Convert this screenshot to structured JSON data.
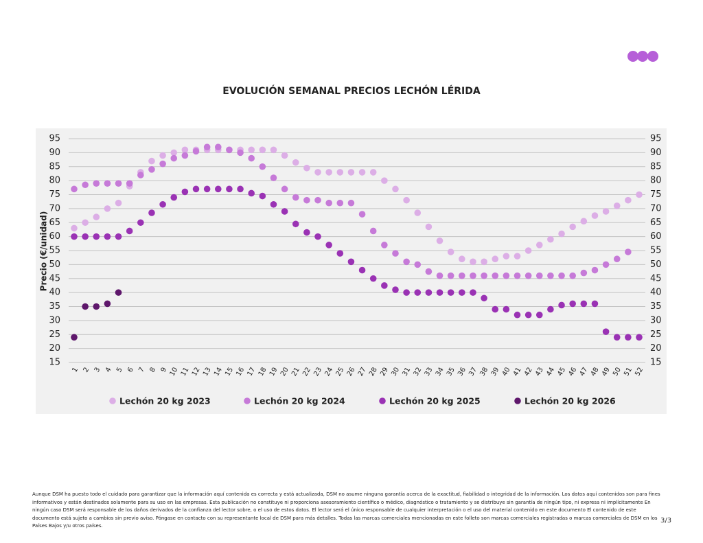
{
  "chart_data": {
    "type": "dot",
    "title": "EVOLUCIÓN SEMANAL PRECIOS LECHÓN LÉRIDA",
    "y_label": "Precio (€/unidad)",
    "categories": [
      "1",
      "2",
      "3",
      "4",
      "5",
      "6",
      "7",
      "8",
      "9",
      "10",
      "11",
      "12",
      "13",
      "14",
      "15",
      "16",
      "17",
      "18",
      "19",
      "20",
      "21",
      "22",
      "23",
      "24",
      "25",
      "26",
      "27",
      "28",
      "29",
      "30",
      "31",
      "32",
      "33",
      "34",
      "35",
      "36",
      "37",
      "38",
      "39",
      "40",
      "41",
      "42",
      "43",
      "44",
      "45",
      "46",
      "47",
      "48",
      "49",
      "50",
      "51",
      "52"
    ],
    "ylim": [
      15,
      95
    ],
    "yticks": [
      15,
      20,
      25,
      30,
      35,
      40,
      45,
      50,
      55,
      60,
      65,
      70,
      75,
      80,
      85,
      90,
      95
    ],
    "grid": true,
    "legend": "bottom",
    "series": [
      {
        "name": "Lechón 20 kg 2023",
        "color": "#dcaee6",
        "values": [
          63,
          65,
          67,
          70,
          72,
          78,
          83,
          87,
          89,
          90,
          91,
          91,
          91,
          91,
          91,
          91,
          91,
          91,
          91,
          89,
          86.5,
          84.5,
          83,
          83,
          83,
          83,
          83,
          83,
          80,
          77,
          73,
          68.5,
          63.5,
          58.5,
          54.5,
          52,
          51,
          51,
          52,
          53,
          53,
          55,
          57,
          59,
          61,
          63.5,
          65.5,
          67.5,
          69,
          71,
          73,
          75
        ]
      },
      {
        "name": "Lechón 20 kg 2024",
        "color": "#c67ad8",
        "values": [
          77,
          78.5,
          79,
          79,
          79,
          79,
          82,
          84,
          86,
          88,
          89,
          90.5,
          92,
          92,
          91,
          90,
          88,
          85,
          81,
          77,
          74,
          73,
          73,
          72,
          72,
          72,
          68,
          62,
          57,
          54,
          51,
          50,
          47.5,
          46,
          46,
          46,
          46,
          46,
          46,
          46,
          46,
          46,
          46,
          46,
          46,
          46,
          47,
          48,
          50,
          52,
          54.5,
          null
        ]
      },
      {
        "name": "Lechón 20 kg 2025",
        "color": "#9a32b4",
        "values": [
          60,
          60,
          60,
          60,
          60,
          62,
          65,
          68.5,
          71.5,
          74,
          76,
          77,
          77,
          77,
          77,
          77,
          75.5,
          74.5,
          71.5,
          69,
          64.5,
          61.5,
          60,
          57,
          54,
          51,
          48,
          45,
          42.5,
          41,
          40,
          40,
          40,
          40,
          40,
          40,
          40,
          38,
          34,
          34,
          32,
          32,
          32,
          34,
          35.5,
          36,
          36,
          36,
          26,
          24,
          24,
          24
        ]
      },
      {
        "name": "Lechón 20 kg 2026",
        "color": "#5e176b",
        "values": [
          24,
          35,
          35,
          36,
          40,
          null,
          null,
          null,
          null,
          null,
          null,
          null,
          null,
          null,
          null,
          null,
          null,
          null,
          null,
          null,
          null,
          null,
          null,
          null,
          null,
          null,
          null,
          null,
          null,
          null,
          null,
          null,
          null,
          null,
          null,
          null,
          null,
          null,
          null,
          null,
          null,
          null,
          null,
          null,
          null,
          null,
          null,
          null,
          null,
          null,
          null,
          null
        ]
      }
    ]
  },
  "footer": {
    "disclaimer": "Aunque DSM ha puesto todo el cuidado para garantizar que la información aquí contenida es correcta y está actualizada, DSM no asume ninguna garantía acerca de la exactitud, fiabilidad o integridad de la información. Los datos aquí contenidos son para fines informativos y están destinados solamente para su uso en las empresas. Esta publicación no constituye ni proporciona asesoramiento científico o médico, diagnóstico o tratamiento y se distribuye sin garantía de ningún tipo, ni expresa ni implícitamente En ningún caso DSM será responsable de los daños derivados de la confianza del lector sobre, o el uso de estos datos. El lector será el único responsable de cualquier interpretación o el uso del material contenido en este documento El contenido de este documento está sujeto a cambios sin previo aviso. Póngase en contacto con su representante local de DSM para más detalles. Todas las marcas comerciales mencionadas en este folleto son marcas comerciales registradas o marcas comerciales de DSM en los Países Bajos y/u otros países.",
    "page": "3/3"
  }
}
